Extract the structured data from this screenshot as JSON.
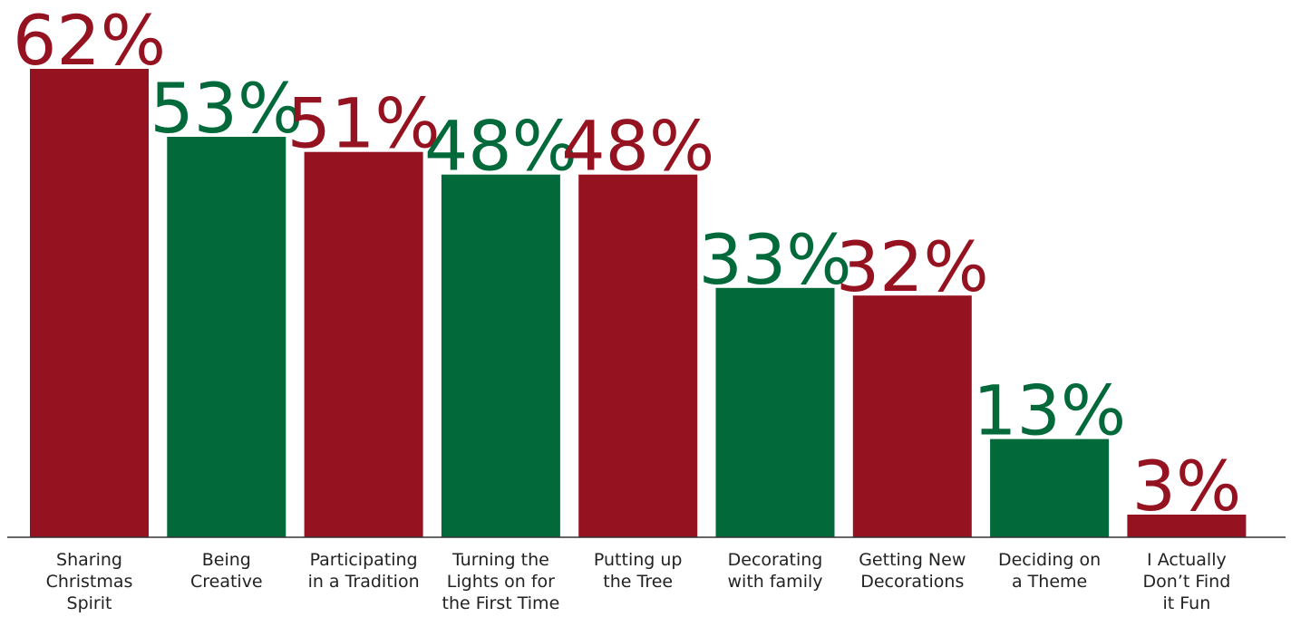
{
  "chart_data": {
    "type": "bar",
    "categories": [
      [
        "Sharing",
        "Christmas",
        "Spirit"
      ],
      [
        "Being",
        "Creative"
      ],
      [
        "Participating",
        "in a Tradition"
      ],
      [
        "Turning the",
        "Lights on for",
        "the First Time"
      ],
      [
        "Putting up",
        "the Tree"
      ],
      [
        "Decorating",
        "with family"
      ],
      [
        "Getting New",
        "Decorations"
      ],
      [
        "Deciding on",
        "a Theme"
      ],
      [
        "I Actually",
        "Don’t Find",
        "it Fun"
      ]
    ],
    "values": [
      62,
      53,
      51,
      48,
      48,
      33,
      32,
      13,
      3
    ],
    "value_labels": [
      "62%",
      "53%",
      "51%",
      "48%",
      "48%",
      "33%",
      "32%",
      "13%",
      "3%"
    ],
    "unit": "%",
    "ylim": [
      0,
      62
    ],
    "grid": false,
    "legend": "none",
    "title": "",
    "xlabel": "",
    "ylabel": "",
    "colors": [
      "#951220",
      "#01693a",
      "#951220",
      "#01693a",
      "#951220",
      "#01693a",
      "#951220",
      "#01693a",
      "#951220"
    ]
  }
}
